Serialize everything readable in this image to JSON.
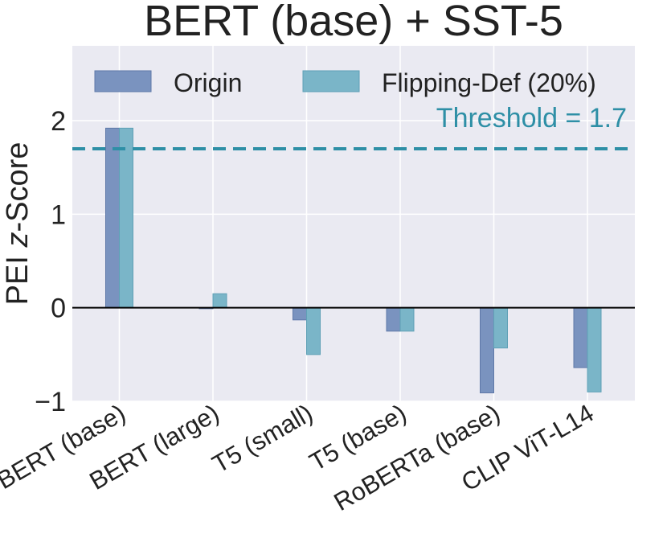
{
  "chart_data": {
    "type": "bar",
    "title": "BERT (base) + SST-5",
    "xlabel": "",
    "ylabel_prefix": "PEI ",
    "ylabel_italic": "z",
    "ylabel_suffix": "-Score",
    "ylim": [
      -1,
      2.8
    ],
    "yticks": [
      -1,
      0,
      1,
      2
    ],
    "ytick_labels": [
      "−1",
      "0",
      "1",
      "2"
    ],
    "grid": true,
    "legend_position": "top",
    "categories": [
      "BERT (base)",
      "BERT (large)",
      "T5 (small)",
      "T5 (base)",
      "RoBERTa (base)",
      "CLIP ViT-L14"
    ],
    "series": [
      {
        "name": "Origin",
        "color": "#7a93bf",
        "values": [
          1.92,
          -0.01,
          -0.13,
          -0.25,
          -0.91,
          -0.64
        ]
      },
      {
        "name": "Flipping-Def (20%)",
        "color": "#7ab5c8",
        "values": [
          1.92,
          0.15,
          -0.5,
          -0.25,
          -0.43,
          -0.9
        ]
      }
    ],
    "threshold": {
      "value": 1.7,
      "label": "Threshold = 1.7",
      "color": "#2e8fa6"
    }
  }
}
